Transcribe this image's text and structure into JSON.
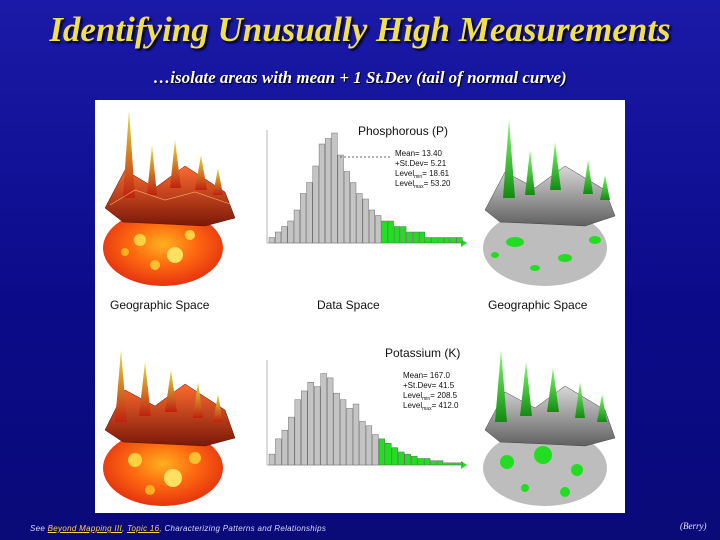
{
  "title": "Identifying Unusually High Measurements",
  "subtitle": "…isolate areas with mean + 1 St.Dev  (tail of normal curve)",
  "labels": {
    "geo_left": "Geographic Space",
    "data_space": "Data Space",
    "geo_right": "Geographic Space"
  },
  "phosphorous": {
    "name": "Phosphorous (P)",
    "mean": "Mean= 13.40",
    "stdev": "+St.Dev= 5.21",
    "level_min": "Level",
    "level_min_sub": "min",
    "level_min_val": "= 18.61",
    "level_max": "Level",
    "level_max_sub": "max",
    "level_max_val": "= 53.20"
  },
  "potassium": {
    "name": "Potassium (K)",
    "mean": "Mean= 167.0",
    "stdev": "+St.Dev= 41.5",
    "level_min": "Level",
    "level_min_sub": "min",
    "level_min_val": "= 208.5",
    "level_max": "Level",
    "level_max_sub": "max",
    "level_max_val": "= 412.0"
  },
  "footer": {
    "prefix": "See ",
    "link1": "Beyond Mapping III",
    "sep": ", ",
    "link2": "Topic 16",
    "suffix": ", Characterizing Patterns and Relationships"
  },
  "credit": "(Berry)",
  "colors": {
    "background": "#0b0b8a",
    "title": "#f2e04a",
    "bar_gray": "#c4c4c4",
    "bar_green": "#22dd22"
  },
  "chart_data": [
    {
      "type": "bar",
      "name": "Phosphorous (P)",
      "values": [
        1,
        2,
        3,
        4,
        6,
        9,
        11,
        14,
        18,
        19,
        20,
        16,
        13,
        11,
        9,
        8,
        6,
        5,
        4,
        4,
        3,
        3,
        2,
        2,
        2,
        1,
        1,
        1,
        1,
        1,
        1
      ],
      "highlight_from_index": 18,
      "ylim": [
        0,
        20
      ]
    },
    {
      "type": "bar",
      "name": "Potassium (K)",
      "values": [
        5,
        12,
        16,
        22,
        30,
        34,
        38,
        36,
        42,
        40,
        33,
        30,
        26,
        28,
        20,
        18,
        14,
        12,
        10,
        8,
        6,
        5,
        4,
        3,
        3,
        2,
        2,
        1,
        1,
        1
      ],
      "highlight_from_index": 17,
      "ylim": [
        0,
        45
      ]
    }
  ]
}
